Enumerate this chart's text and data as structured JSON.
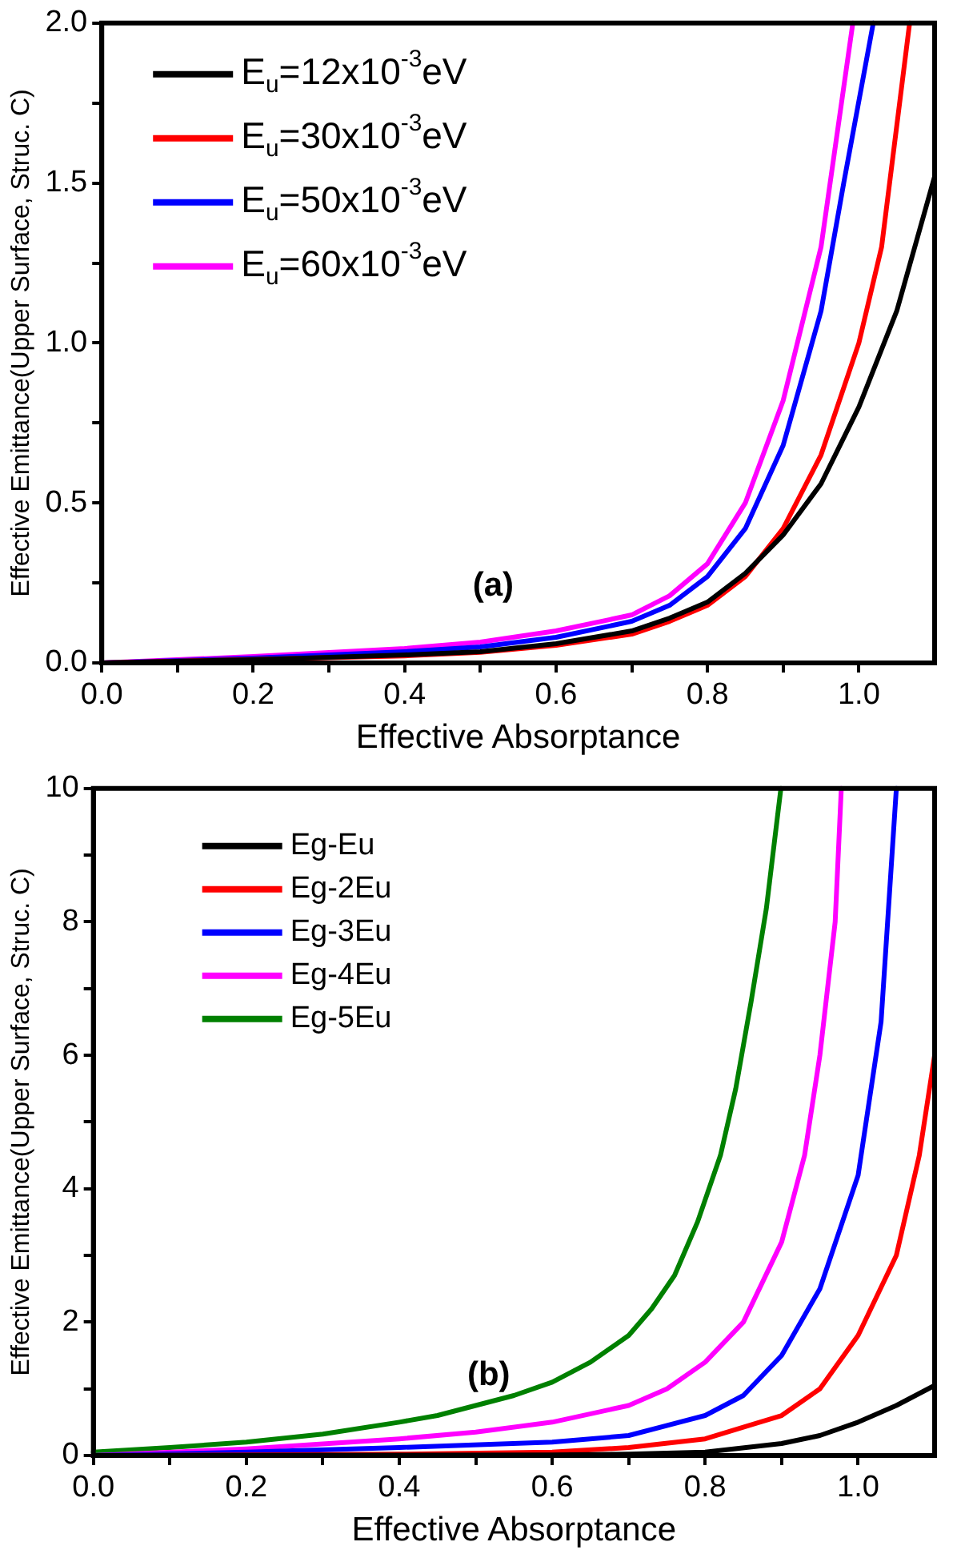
{
  "chart_data": [
    {
      "type": "line",
      "xlabel": "Effective Absorptance",
      "ylabel": "Effective Emittance(Upper Surface, Struc. C)",
      "annotations": [
        "(a)"
      ],
      "legend": "top left",
      "grid": false,
      "marker": "none",
      "line_style": "solid",
      "xlim": [
        0,
        1.1
      ],
      "ylim": [
        0,
        2
      ],
      "xticks": [
        {
          "value": 0,
          "label": "0.0"
        },
        {
          "value": 0.1,
          "label": null
        },
        {
          "value": 0.2,
          "label": "0.2"
        },
        {
          "value": 0.3,
          "label": null
        },
        {
          "value": 0.4,
          "label": "0.4"
        },
        {
          "value": 0.5,
          "label": null
        },
        {
          "value": 0.6,
          "label": "0.6"
        },
        {
          "value": 0.7,
          "label": null
        },
        {
          "value": 0.8,
          "label": "0.8"
        },
        {
          "value": 0.9,
          "label": null
        },
        {
          "value": 1,
          "label": "1.0"
        }
      ],
      "yticks": [
        {
          "value": 0,
          "label": "0.0"
        },
        {
          "value": 0.25,
          "label": null
        },
        {
          "value": 0.5,
          "label": "0.5"
        },
        {
          "value": 0.75,
          "label": null
        },
        {
          "value": 1,
          "label": "1.0"
        },
        {
          "value": 1.25,
          "label": null
        },
        {
          "value": 1.5,
          "label": "1.5"
        },
        {
          "value": 1.75,
          "label": null
        },
        {
          "value": 2,
          "label": "2.0"
        }
      ],
      "series": [
        {
          "name": "E$_{u}$=12x10$^{-3}$eV",
          "color": "#000000",
          "x": [
            0,
            0.2,
            0.4,
            0.5,
            0.6,
            0.7,
            0.75,
            0.8,
            0.85,
            0.9,
            0.95,
            1.0,
            1.05,
            1.1
          ],
          "values": [
            0,
            0.01,
            0.025,
            0.035,
            0.06,
            0.1,
            0.14,
            0.19,
            0.28,
            0.4,
            0.56,
            0.8,
            1.1,
            1.52
          ]
        },
        {
          "name": "E$_{u}$=30x10$^{-3}$eV",
          "color": "#ff0000",
          "x": [
            0,
            0.4,
            0.5,
            0.6,
            0.7,
            0.75,
            0.8,
            0.85,
            0.9,
            0.95,
            1.0,
            1.03,
            1.067
          ],
          "values": [
            0,
            0.022,
            0.033,
            0.055,
            0.09,
            0.13,
            0.18,
            0.27,
            0.42,
            0.65,
            1.0,
            1.3,
            2.0
          ]
        },
        {
          "name": "E$_{u}$=50x10$^{-3}$eV",
          "color": "#0000ff",
          "x": [
            0,
            0.2,
            0.4,
            0.5,
            0.6,
            0.7,
            0.75,
            0.8,
            0.85,
            0.9,
            0.95,
            0.98,
            1.019
          ],
          "values": [
            0,
            0.015,
            0.035,
            0.05,
            0.08,
            0.13,
            0.18,
            0.27,
            0.42,
            0.68,
            1.1,
            1.5,
            2.0
          ]
        },
        {
          "name": "E$_{u}$=60x10$^{-3}$eV",
          "color": "#ff00ff",
          "x": [
            0,
            0.2,
            0.4,
            0.5,
            0.6,
            0.7,
            0.75,
            0.8,
            0.85,
            0.9,
            0.95,
            0.992
          ],
          "values": [
            0,
            0.02,
            0.045,
            0.065,
            0.1,
            0.15,
            0.21,
            0.31,
            0.5,
            0.82,
            1.3,
            2.0
          ]
        }
      ]
    },
    {
      "type": "line",
      "xlabel": "Effective Absorptance",
      "ylabel": "Effective Emittance(Upper Surface, Struc. C)",
      "annotations": [
        "(b)"
      ],
      "legend": "top left",
      "grid": false,
      "marker": "none",
      "line_style": "solid",
      "xlim": [
        0,
        1.1
      ],
      "ylim": [
        0,
        10
      ],
      "xticks": [
        {
          "value": 0,
          "label": "0.0"
        },
        {
          "value": 0.1,
          "label": null
        },
        {
          "value": 0.2,
          "label": "0.2"
        },
        {
          "value": 0.3,
          "label": null
        },
        {
          "value": 0.4,
          "label": "0.4"
        },
        {
          "value": 0.5,
          "label": null
        },
        {
          "value": 0.6,
          "label": "0.6"
        },
        {
          "value": 0.7,
          "label": null
        },
        {
          "value": 0.8,
          "label": "0.8"
        },
        {
          "value": 0.9,
          "label": null
        },
        {
          "value": 1,
          "label": "1.0"
        }
      ],
      "yticks": [
        0,
        {
          "value": 1,
          "label": null
        },
        2,
        {
          "value": 3,
          "label": null
        },
        4,
        {
          "value": 5,
          "label": null
        },
        6,
        {
          "value": 7,
          "label": null
        },
        8,
        {
          "value": 9,
          "label": null
        },
        10
      ],
      "series": [
        {
          "name": "Eg-Eu",
          "color": "#000000",
          "x": [
            0,
            0.6,
            0.7,
            0.8,
            0.9,
            0.95,
            1.0,
            1.05,
            1.1
          ],
          "values": [
            0,
            0.01,
            0.02,
            0.05,
            0.18,
            0.3,
            0.5,
            0.75,
            1.05
          ]
        },
        {
          "name": "Eg-2Eu",
          "color": "#ff0000",
          "x": [
            0,
            0.4,
            0.6,
            0.7,
            0.8,
            0.9,
            0.95,
            1.0,
            1.05,
            1.08,
            1.1
          ],
          "values": [
            0,
            0.02,
            0.05,
            0.12,
            0.25,
            0.6,
            1.0,
            1.8,
            3.0,
            4.5,
            6.0
          ]
        },
        {
          "name": "Eg-3Eu",
          "color": "#0000ff",
          "x": [
            0,
            0.2,
            0.4,
            0.6,
            0.7,
            0.8,
            0.85,
            0.9,
            0.95,
            1.0,
            1.03,
            1.05
          ],
          "values": [
            0,
            0.05,
            0.12,
            0.2,
            0.3,
            0.6,
            0.9,
            1.5,
            2.5,
            4.2,
            6.5,
            10
          ]
        },
        {
          "name": "Eg-4Eu",
          "color": "#ff00ff",
          "x": [
            0,
            0.2,
            0.4,
            0.5,
            0.6,
            0.7,
            0.75,
            0.8,
            0.85,
            0.9,
            0.93,
            0.95,
            0.97,
            0.978
          ],
          "values": [
            0,
            0.1,
            0.25,
            0.35,
            0.5,
            0.75,
            1.0,
            1.4,
            2.0,
            3.2,
            4.5,
            6.0,
            8.0,
            10
          ]
        },
        {
          "name": "Eg-5Eu",
          "color": "#008000",
          "x": [
            0,
            0.1,
            0.2,
            0.3,
            0.4,
            0.45,
            0.5,
            0.55,
            0.6,
            0.65,
            0.7,
            0.73,
            0.76,
            0.79,
            0.82,
            0.84,
            0.86,
            0.88,
            0.899
          ],
          "values": [
            0.05,
            0.12,
            0.2,
            0.32,
            0.5,
            0.6,
            0.75,
            0.9,
            1.1,
            1.4,
            1.8,
            2.2,
            2.7,
            3.5,
            4.5,
            5.5,
            6.8,
            8.2,
            10
          ]
        }
      ]
    }
  ]
}
